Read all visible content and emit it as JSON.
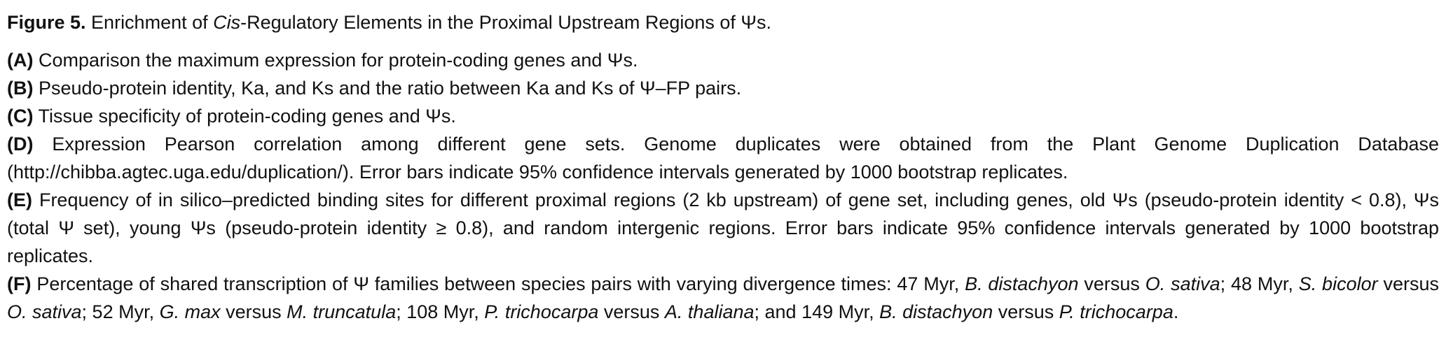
{
  "figure": {
    "label": "Figure 5.",
    "title_pre": "Enrichment of ",
    "title_italic": "Cis",
    "title_post": "-Regulatory Elements in the Proximal Upstream Regions of Ψs."
  },
  "panels": {
    "a": {
      "label": "(A)",
      "text": "Comparison the maximum expression for protein-coding genes and Ψs."
    },
    "b": {
      "label": "(B)",
      "text": "Pseudo-protein identity, Ka, and Ks and the ratio between Ka and Ks of Ψ–FP pairs."
    },
    "c": {
      "label": "(C)",
      "text": "Tissue specificity of protein-coding genes and Ψs."
    },
    "d": {
      "label": "(D)",
      "text": "Expression Pearson correlation among different gene sets. Genome duplicates were obtained from the Plant Genome Duplication Database (http://chibba.agtec.uga.edu/duplication/). Error bars indicate 95% confidence intervals generated by 1000 bootstrap replicates."
    },
    "e": {
      "label": "(E)",
      "text": "Frequency of in silico–predicted binding sites for different proximal regions (2 kb upstream) of gene set, including genes, old Ψs (pseudo-protein identity < 0.8), Ψs (total Ψ set), young Ψs (pseudo-protein identity ≥ 0.8), and random intergenic regions. Error bars indicate 95% confidence intervals generated by 1000 bootstrap replicates."
    },
    "f": {
      "label": "(F)",
      "t1": "Percentage of shared transcription of Ψ families between species pairs with varying divergence times: 47 Myr, ",
      "s1": "B. distachyon",
      "t2": " versus ",
      "s2": "O. sativa",
      "t3": "; 48 Myr, ",
      "s3": "S. bicolor",
      "t4": " versus ",
      "s4": "O. sativa",
      "t5": "; 52 Myr, ",
      "s5": "G. max",
      "t6": " versus ",
      "s6": "M. truncatula",
      "t7": "; 108 Myr, ",
      "s7": "P. trichocarpa",
      "t8": " versus ",
      "s8": "A. thaliana",
      "t9": "; and 149 Myr, ",
      "s9": "B. distachyon",
      "t10": " versus ",
      "s10": "P. trichocarpa",
      "t11": "."
    }
  }
}
